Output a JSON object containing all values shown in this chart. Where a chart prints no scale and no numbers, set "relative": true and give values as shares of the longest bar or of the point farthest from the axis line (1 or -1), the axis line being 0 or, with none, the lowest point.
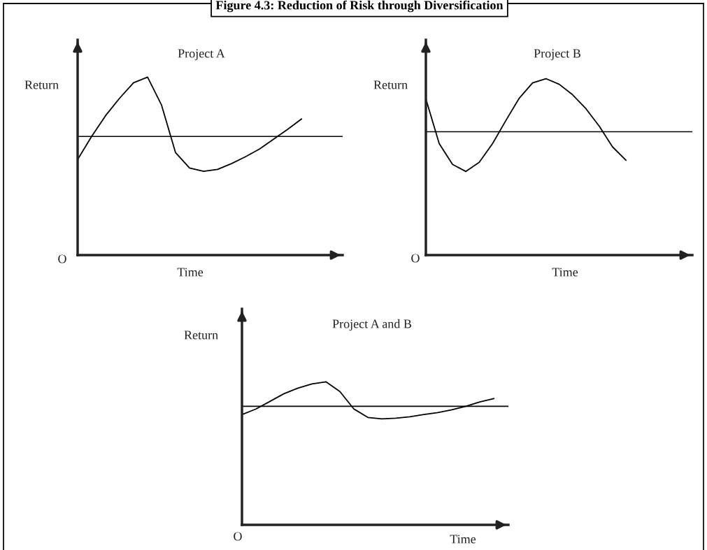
{
  "chart_data": [
    {
      "type": "line",
      "title": "Figure 4.3: Reduction of Risk through Diversification",
      "subtitle": "Project A",
      "xlabel": "Time",
      "ylabel": "Return",
      "annotations": [
        "O"
      ],
      "relative": true,
      "tick_labels": false,
      "legend": false,
      "marker": "none",
      "line_style": "solid",
      "categories": [
        null,
        null,
        null,
        null,
        null,
        null,
        null,
        null,
        null,
        null,
        null,
        null,
        null,
        null,
        null,
        null,
        null
      ],
      "series": [
        {
          "color": "#000000",
          "values": [
            0.537,
            0.667,
            0.784,
            0.882,
            0.969,
            1.0,
            0.843,
            0.576,
            0.49,
            0.471,
            0.482,
            0.514,
            0.553,
            0.596,
            0.651,
            0.706,
            0.765
          ]
        }
      ],
      "ref_lines": [
        {
          "axis": "y",
          "value": 0.667,
          "color": "#000000"
        }
      ]
    },
    {
      "type": "line",
      "subtitle": "Project B",
      "xlabel": "Time",
      "ylabel": "Return",
      "annotations": [
        "O"
      ],
      "relative": true,
      "tick_labels": false,
      "legend": false,
      "marker": "none",
      "line_style": "solid",
      "categories": [
        null,
        null,
        null,
        null,
        null,
        null,
        null,
        null,
        null,
        null,
        null,
        null,
        null,
        null,
        null,
        null
      ],
      "series": [
        {
          "color": "#000000",
          "values": [
            0.885,
            0.632,
            0.514,
            0.474,
            0.526,
            0.632,
            0.763,
            0.889,
            0.976,
            1.0,
            0.968,
            0.909,
            0.83,
            0.731,
            0.613,
            0.538
          ]
        }
      ],
      "ref_lines": [
        {
          "axis": "y",
          "value": 0.699,
          "color": "#000000"
        }
      ]
    },
    {
      "type": "line",
      "subtitle": "Project A and B",
      "xlabel": "Time",
      "ylabel": "Return",
      "annotations": [
        "O"
      ],
      "relative": true,
      "tick_labels": false,
      "legend": false,
      "marker": "none",
      "line_style": "solid",
      "categories": [
        null,
        null,
        null,
        null,
        null,
        null,
        null,
        null,
        null,
        null,
        null,
        null,
        null,
        null,
        null,
        null,
        null,
        null,
        null
      ],
      "series": [
        {
          "color": "#000000",
          "values": [
            0.771,
            0.81,
            0.863,
            0.917,
            0.956,
            0.985,
            1.0,
            0.932,
            0.81,
            0.751,
            0.741,
            0.746,
            0.756,
            0.771,
            0.785,
            0.805,
            0.829,
            0.859,
            0.883
          ]
        }
      ],
      "ref_lines": [
        {
          "axis": "y",
          "value": 0.829,
          "color": "#000000"
        }
      ]
    }
  ]
}
